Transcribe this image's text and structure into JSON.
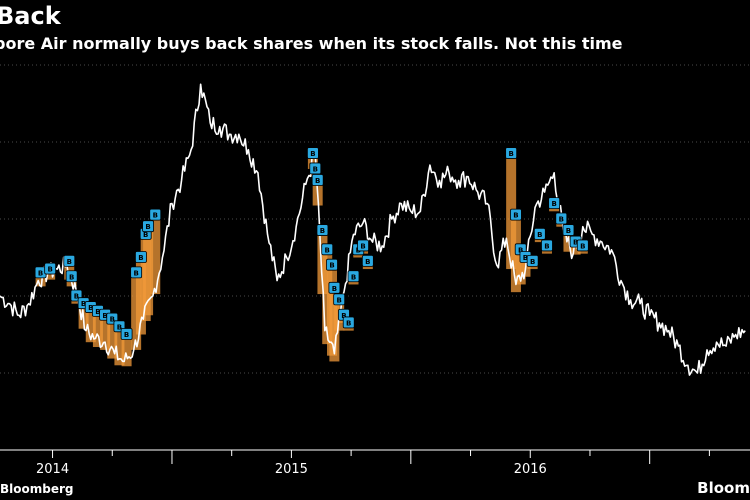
{
  "header": {
    "title": "Back",
    "subtitle": "pore Air normally buys back shares when its stock falls. Not this time"
  },
  "footer": {
    "source": "Bloomberg",
    "brand": "Bloom"
  },
  "colors": {
    "background": "#000000",
    "line": "#ffffff",
    "buyback_fill": "#f29a3a",
    "marker": "#2aa8e0",
    "gridline": "#4a4a4a"
  },
  "chart_data": {
    "type": "line",
    "title": "",
    "xlabel": "",
    "ylabel": "",
    "x_axis": {
      "tick_labels": [
        "2014",
        "2015",
        "2016"
      ],
      "ticks": [
        2014.0,
        2015.0,
        2016.0
      ],
      "range": [
        2013.78,
        2016.92
      ]
    },
    "y_range": [
      0,
      100
    ],
    "grid": true,
    "legend": "none",
    "marker_label": "B",
    "series": [
      {
        "name": "",
        "x": [
          2013.78,
          2013.82,
          2013.86,
          2013.9,
          2013.94,
          2013.98,
          2014.02,
          2014.06,
          2014.1,
          2014.14,
          2014.18,
          2014.22,
          2014.26,
          2014.3,
          2014.34,
          2014.38,
          2014.42,
          2014.46,
          2014.5,
          2014.54,
          2014.58,
          2014.62,
          2014.66,
          2014.7,
          2014.74,
          2014.78,
          2014.82,
          2014.86,
          2014.9,
          2014.94,
          2014.98,
          2015.02,
          2015.06,
          2015.1,
          2015.14,
          2015.18,
          2015.22,
          2015.26,
          2015.3,
          2015.34,
          2015.38,
          2015.42,
          2015.46,
          2015.5,
          2015.54,
          2015.58,
          2015.62,
          2015.66,
          2015.7,
          2015.74,
          2015.78,
          2015.82,
          2015.86,
          2015.9,
          2015.94,
          2015.98,
          2016.02,
          2016.06,
          2016.1,
          2016.14,
          2016.18,
          2016.22,
          2016.26,
          2016.3,
          2016.34,
          2016.38,
          2016.42,
          2016.46,
          2016.5,
          2016.54,
          2016.58,
          2016.62,
          2016.66,
          2016.7,
          2016.74,
          2016.78,
          2016.82,
          2016.86,
          2016.9
        ],
        "y": [
          40,
          38,
          35,
          38,
          44,
          46,
          47,
          48,
          41,
          31,
          29,
          28,
          25,
          23,
          26,
          34,
          40,
          50,
          64,
          70,
          78,
          95,
          85,
          84,
          82,
          82,
          78,
          72,
          56,
          44,
          50,
          58,
          69,
          77,
          31,
          25,
          41,
          56,
          59,
          54,
          53,
          60,
          64,
          62,
          62,
          74,
          70,
          72,
          70,
          71,
          67,
          64,
          48,
          55,
          43,
          47,
          63,
          67,
          72,
          56,
          51,
          58,
          56,
          54,
          52,
          44,
          39,
          38,
          35,
          33,
          31,
          27,
          22,
          20,
          26,
          28,
          27,
          30,
          31
        ]
      }
    ],
    "buyback_markers": [
      {
        "x": 2013.95,
        "y": 46
      },
      {
        "x": 2013.99,
        "y": 47
      },
      {
        "x": 2014.07,
        "y": 49
      },
      {
        "x": 2014.08,
        "y": 45
      },
      {
        "x": 2014.1,
        "y": 40
      },
      {
        "x": 2014.13,
        "y": 38
      },
      {
        "x": 2014.16,
        "y": 37
      },
      {
        "x": 2014.19,
        "y": 36
      },
      {
        "x": 2014.22,
        "y": 35
      },
      {
        "x": 2014.25,
        "y": 34
      },
      {
        "x": 2014.28,
        "y": 32
      },
      {
        "x": 2014.31,
        "y": 30
      },
      {
        "x": 2014.35,
        "y": 46
      },
      {
        "x": 2014.37,
        "y": 50
      },
      {
        "x": 2014.39,
        "y": 56
      },
      {
        "x": 2014.4,
        "y": 58
      },
      {
        "x": 2014.43,
        "y": 61
      },
      {
        "x": 2015.09,
        "y": 77
      },
      {
        "x": 2015.1,
        "y": 73
      },
      {
        "x": 2015.11,
        "y": 70
      },
      {
        "x": 2015.13,
        "y": 57
      },
      {
        "x": 2015.15,
        "y": 52
      },
      {
        "x": 2015.17,
        "y": 48
      },
      {
        "x": 2015.18,
        "y": 42
      },
      {
        "x": 2015.2,
        "y": 39
      },
      {
        "x": 2015.22,
        "y": 35
      },
      {
        "x": 2015.24,
        "y": 33
      },
      {
        "x": 2015.26,
        "y": 45
      },
      {
        "x": 2015.28,
        "y": 52
      },
      {
        "x": 2015.3,
        "y": 53
      },
      {
        "x": 2015.32,
        "y": 49
      },
      {
        "x": 2015.92,
        "y": 77
      },
      {
        "x": 2015.94,
        "y": 61
      },
      {
        "x": 2015.96,
        "y": 52
      },
      {
        "x": 2015.98,
        "y": 50
      },
      {
        "x": 2016.01,
        "y": 49
      },
      {
        "x": 2016.04,
        "y": 56
      },
      {
        "x": 2016.07,
        "y": 53
      },
      {
        "x": 2016.1,
        "y": 64
      },
      {
        "x": 2016.13,
        "y": 60
      },
      {
        "x": 2016.16,
        "y": 57
      },
      {
        "x": 2016.19,
        "y": 54
      },
      {
        "x": 2016.22,
        "y": 53
      }
    ]
  }
}
